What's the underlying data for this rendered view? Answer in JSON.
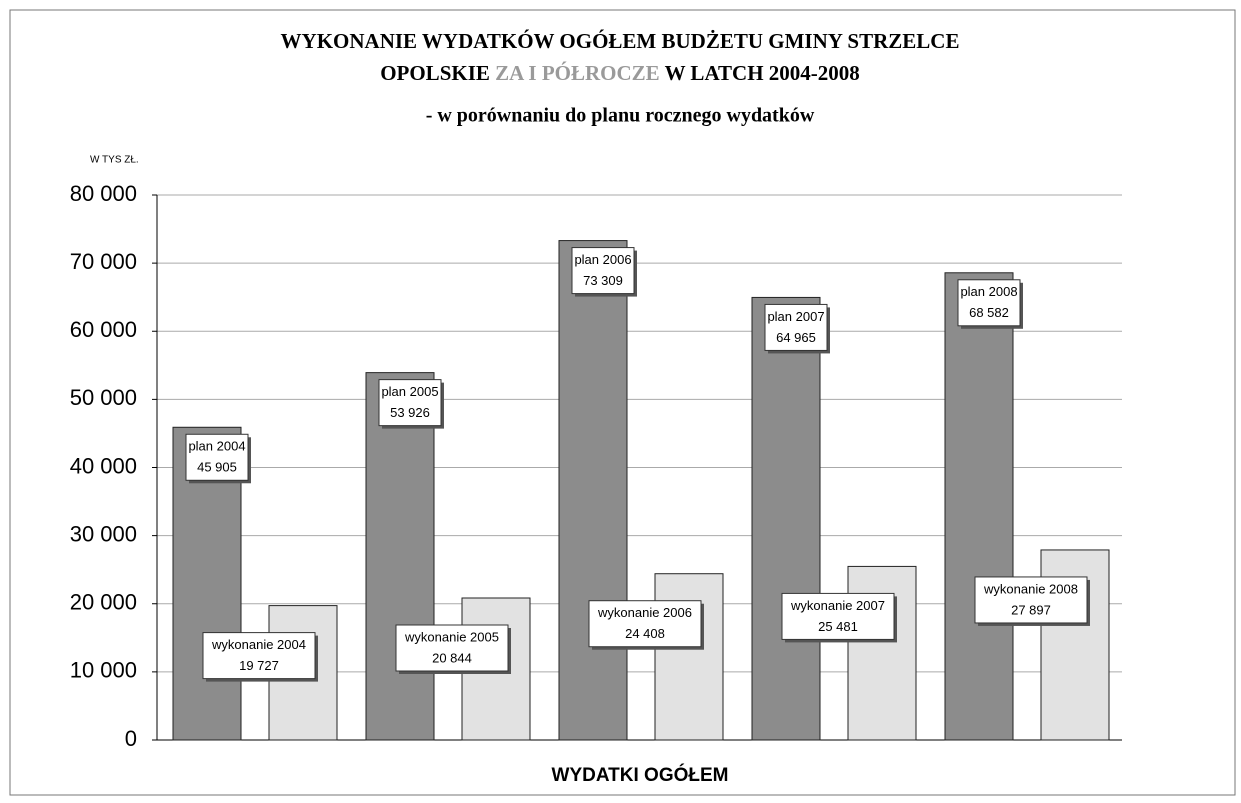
{
  "chart_data": {
    "type": "bar",
    "title_lines": [
      [
        "WYKONANIE WYDATKÓW OGÓŁEM  BUDŻETU GMINY STRZELCE"
      ],
      [
        "OPOLSKIE",
        "ZA I PÓŁROCZE",
        "W LATCH 2004-2008"
      ]
    ],
    "title_highlight_color": "#9a9a9a",
    "subtitle": "- w porównaniu do planu rocznego wydatków",
    "unit_label": "W TYS ZŁ.",
    "x_label": "WYDATKI OGÓŁEM",
    "series": [
      {
        "name": "plan",
        "color": "#8c8c8c",
        "point_labels": [
          "plan 2004",
          "plan 2005",
          "plan 2006",
          "plan 2007",
          "plan 2008"
        ],
        "values": [
          45905,
          53926,
          73309,
          64965,
          68582
        ],
        "value_labels": [
          "45 905",
          "53 926",
          "73 309",
          "64 965",
          "68 582"
        ]
      },
      {
        "name": "wykonanie",
        "color": "#e2e2e2",
        "point_labels": [
          "wykonanie 2004",
          "wykonanie 2005",
          "wykonanie 2006",
          "wykonanie 2007",
          "wykonanie 2008"
        ],
        "values": [
          19727,
          20844,
          24408,
          25481,
          27897
        ],
        "value_labels": [
          "19 727",
          "20 844",
          "24 408",
          "25 481",
          "27 897"
        ]
      }
    ],
    "ylim": [
      0,
      80000
    ],
    "yticks": [
      0,
      {
        "value": 10000,
        "label": "10 000"
      },
      {
        "value": 20000,
        "label": "20 000"
      },
      {
        "value": 30000,
        "label": "30 000"
      },
      {
        "value": 40000,
        "label": "40 000"
      },
      {
        "value": 50000,
        "label": "50 000"
      },
      {
        "value": 60000,
        "label": "60 000"
      },
      {
        "value": 70000,
        "label": "70 000"
      },
      {
        "value": 80000,
        "label": "80 000"
      }
    ],
    "grid": true
  }
}
